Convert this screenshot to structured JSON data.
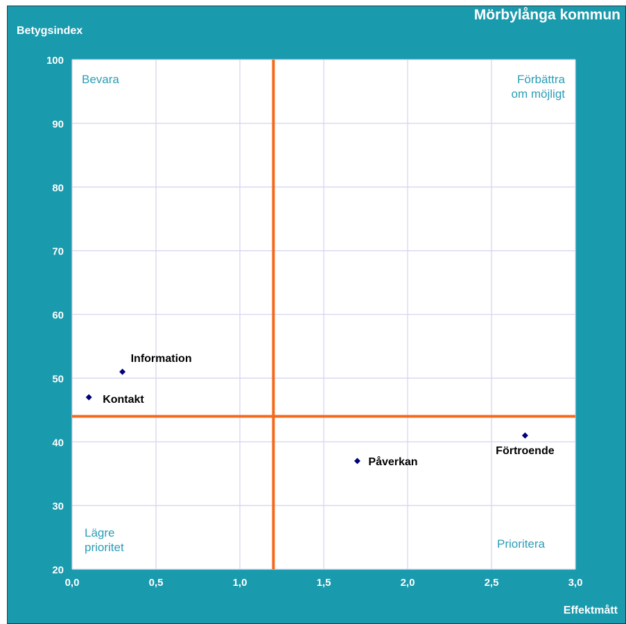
{
  "header": {
    "title": "Mörbylånga kommun"
  },
  "chart_data": {
    "type": "scatter",
    "title": "Mörbylånga kommun",
    "xlabel": "Effektmått",
    "ylabel": "Betygsindex",
    "xlim": [
      0,
      3
    ],
    "ylim": [
      20,
      100
    ],
    "x_ticks": [
      "0,0",
      "0,5",
      "1,0",
      "1,5",
      "2,0",
      "2,5",
      "3,0"
    ],
    "x_tick_values": [
      0,
      0.5,
      1,
      1.5,
      2,
      2.5,
      3
    ],
    "y_ticks": [
      "20",
      "30",
      "40",
      "50",
      "60",
      "70",
      "80",
      "90",
      "100"
    ],
    "y_tick_values": [
      20,
      30,
      40,
      50,
      60,
      70,
      80,
      90,
      100
    ],
    "grid": true,
    "points": [
      {
        "label": "Information",
        "x": 0.3,
        "y": 51
      },
      {
        "label": "Kontakt",
        "x": 0.1,
        "y": 47
      },
      {
        "label": "Påverkan",
        "x": 1.7,
        "y": 37
      },
      {
        "label": "Förtroende",
        "x": 2.7,
        "y": 41
      }
    ],
    "reference_lines": {
      "x": 1.2,
      "y": 44
    },
    "quadrant_labels": {
      "top_left": [
        "Bevara"
      ],
      "top_right": [
        "Förbättra",
        "om möjligt"
      ],
      "bottom_left": [
        "Lägre",
        "prioritet"
      ],
      "bottom_right": [
        "Prioritera"
      ]
    },
    "colors": {
      "frame": "#1a9aad",
      "marker": "#00007a",
      "reference_line": "#f26b1d",
      "grid": "#d3d3ee",
      "quadrant_text": "#2a9db6"
    }
  }
}
